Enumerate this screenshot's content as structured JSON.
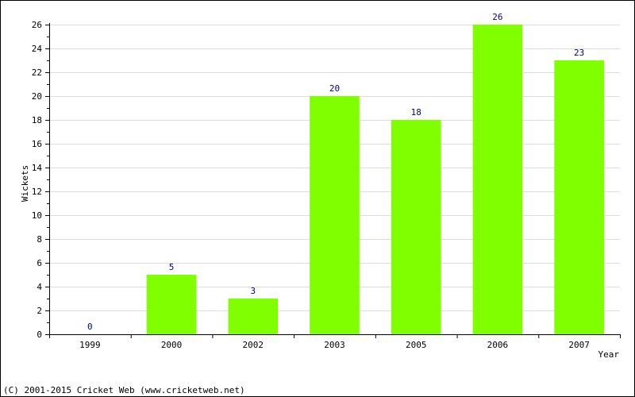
{
  "chart_data": {
    "type": "bar",
    "categories": [
      "1999",
      "2000",
      "2002",
      "2003",
      "2005",
      "2006",
      "2007"
    ],
    "values": [
      0,
      5,
      3,
      20,
      18,
      26,
      23
    ],
    "data_labels": [
      "0",
      "5",
      "3",
      "20",
      "18",
      "26",
      "23"
    ],
    "title": "",
    "xlabel": "Year",
    "ylabel": "Wickets",
    "ylim": [
      0,
      26
    ],
    "yticks": [
      0,
      2,
      4,
      6,
      8,
      10,
      12,
      14,
      16,
      18,
      20,
      22,
      24,
      26
    ],
    "ytick_labels": [
      "0",
      "2",
      "4",
      "6",
      "8",
      "10",
      "12",
      "14",
      "16",
      "18",
      "20",
      "22",
      "24",
      "26"
    ],
    "grid": true,
    "bar_color": "#80FF00",
    "grid_color": "#DDDDDD",
    "data_label_color": "#000080",
    "legend": false
  },
  "footer": {
    "copyright": "(C) 2001-2015 Cricket Web (www.cricketweb.net)"
  }
}
